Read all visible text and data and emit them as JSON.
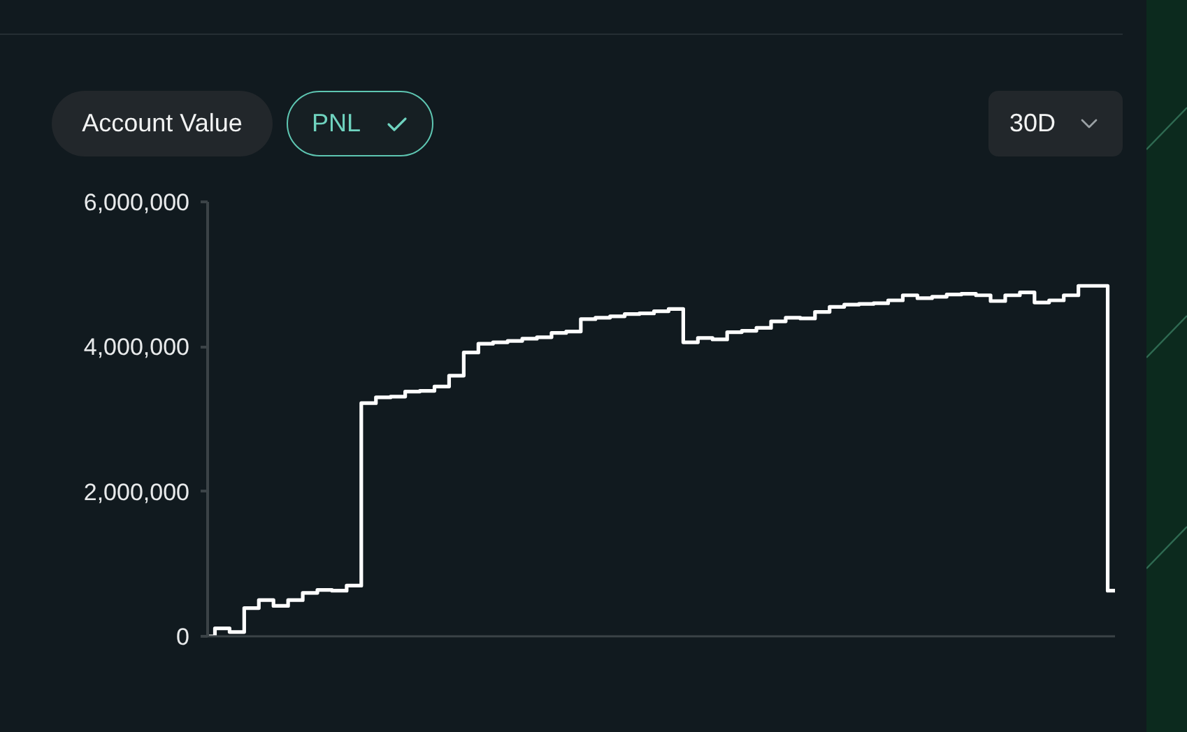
{
  "chart_data": {
    "type": "step",
    "annotations": [
      "Account Value",
      "PNL",
      "30D"
    ],
    "categories": [
      null,
      null,
      null,
      null,
      null,
      null,
      null,
      null,
      null,
      null,
      null,
      null,
      null,
      null,
      null,
      null,
      null,
      null,
      null,
      null,
      null,
      null,
      null,
      null,
      null,
      null,
      null,
      null,
      null,
      null,
      null,
      null,
      null,
      null,
      null,
      null,
      null,
      null,
      null,
      null,
      null,
      null,
      null,
      null,
      null,
      null,
      null,
      null,
      null,
      null,
      null,
      null,
      null,
      null,
      null,
      null,
      null,
      null,
      null,
      null,
      null,
      null,
      null
    ],
    "values": [
      0,
      110000,
      60000,
      390000,
      500000,
      420000,
      500000,
      600000,
      640000,
      630000,
      700000,
      3220000,
      3300000,
      3310000,
      3380000,
      3390000,
      3450000,
      3600000,
      3920000,
      4040000,
      4060000,
      4080000,
      4110000,
      4130000,
      4190000,
      4210000,
      4380000,
      4400000,
      4420000,
      4450000,
      4460000,
      4490000,
      4520000,
      4060000,
      4120000,
      4100000,
      4200000,
      4220000,
      4260000,
      4350000,
      4400000,
      4390000,
      4480000,
      4550000,
      4580000,
      4590000,
      4600000,
      4640000,
      4710000,
      4670000,
      4690000,
      4720000,
      4730000,
      4710000,
      4630000,
      4710000,
      4750000,
      4610000,
      4640000,
      4710000,
      4840000,
      4840000,
      630000
    ],
    "color": "#ffffff",
    "ylim": [
      0,
      6000000
    ],
    "yticks": [
      0,
      {
        "value": 2000000,
        "label": "2,000,000"
      },
      {
        "value": 4000000,
        "label": "4,000,000"
      },
      {
        "value": 6000000,
        "label": "6,000,000"
      }
    ]
  }
}
